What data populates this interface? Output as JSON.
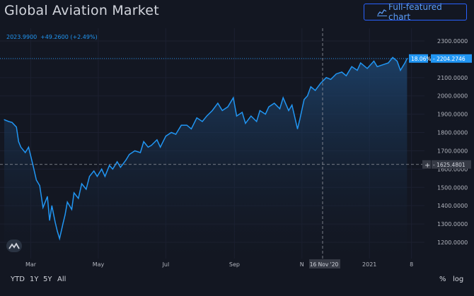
{
  "header": {
    "title": "Global Aviation Market",
    "full_chart_label": "Full-featured chart"
  },
  "legend": {
    "value": "2023.9900",
    "change": "+49.2600 (+2.49%)"
  },
  "crosshair": {
    "x_label": "16 Nov '20",
    "y_value_label": "1625.4801",
    "plus": "+"
  },
  "last_price": {
    "percent_label": "18.06%",
    "value_label": "2204.2746",
    "value": 2204.2746
  },
  "toolbar": {
    "ytd": "YTD",
    "y1": "1Y",
    "y5": "5Y",
    "all": "All",
    "percent": "%",
    "log": "log"
  },
  "colors": {
    "line": "#2196f3",
    "background": "#131722",
    "text": "#d1d4dc",
    "axis_text": "#b2b5be"
  },
  "chart_data": {
    "type": "area",
    "title": "Global Aviation Market",
    "ylim": [
      1100,
      2350
    ],
    "y_ticks": [
      "2300.0000",
      "2200.0000",
      "2100.0000",
      "2000.0000",
      "1900.0000",
      "1800.0000",
      "1700.0000",
      "1600.0000",
      "1500.0000",
      "1400.0000",
      "1300.0000",
      "1200.0000"
    ],
    "y_tick_values": [
      2300,
      2200,
      2100,
      2000,
      1900,
      1800,
      1700,
      1600,
      1500,
      1400,
      1300,
      1200
    ],
    "x_tick_labels": [
      "Mar",
      "May",
      "Jul",
      "Sep",
      "N",
      "2021",
      "8"
    ],
    "x_tick_dates": [
      "2020-03-01",
      "2020-05-01",
      "2020-07-01",
      "2020-09-01",
      "2020-11-01",
      "2021-01-01",
      "2021-02-08"
    ],
    "x_range": [
      "2020-02-06",
      "2021-02-21"
    ],
    "series": [
      {
        "x": [
          "2020-02-06",
          "2020-02-10",
          "2020-02-13",
          "2020-02-17",
          "2020-02-19",
          "2020-02-21",
          "2020-02-25",
          "2020-02-28",
          "2020-03-03",
          "2020-03-06",
          "2020-03-09",
          "2020-03-12",
          "2020-03-16",
          "2020-03-18",
          "2020-03-20",
          "2020-03-23",
          "2020-03-25",
          "2020-03-27",
          "2020-03-30",
          "2020-04-01",
          "2020-04-03",
          "2020-04-07",
          "2020-04-09",
          "2020-04-13",
          "2020-04-16",
          "2020-04-20",
          "2020-04-23",
          "2020-04-27",
          "2020-04-30",
          "2020-05-04",
          "2020-05-07",
          "2020-05-11",
          "2020-05-14",
          "2020-05-18",
          "2020-05-21",
          "2020-05-26",
          "2020-05-29",
          "2020-06-03",
          "2020-06-08",
          "2020-06-11",
          "2020-06-15",
          "2020-06-18",
          "2020-06-23",
          "2020-06-26",
          "2020-07-01",
          "2020-07-06",
          "2020-07-10",
          "2020-07-15",
          "2020-07-20",
          "2020-07-24",
          "2020-07-29",
          "2020-08-03",
          "2020-08-07",
          "2020-08-12",
          "2020-08-17",
          "2020-08-21",
          "2020-08-26",
          "2020-08-31",
          "2020-09-03",
          "2020-09-08",
          "2020-09-11",
          "2020-09-16",
          "2020-09-21",
          "2020-09-24",
          "2020-09-29",
          "2020-10-02",
          "2020-10-07",
          "2020-10-12",
          "2020-10-15",
          "2020-10-20",
          "2020-10-23",
          "2020-10-28",
          "2020-10-30",
          "2020-11-03",
          "2020-11-06",
          "2020-11-09",
          "2020-11-13",
          "2020-11-18",
          "2020-11-23",
          "2020-11-27",
          "2020-12-02",
          "2020-12-07",
          "2020-12-11",
          "2020-12-16",
          "2020-12-21",
          "2020-12-24",
          "2020-12-30",
          "2021-01-05",
          "2021-01-08",
          "2021-01-13",
          "2021-01-18",
          "2021-01-22",
          "2021-01-26",
          "2021-01-29",
          "2021-02-02",
          "2021-02-04"
        ],
        "values": [
          1870,
          1860,
          1855,
          1830,
          1750,
          1720,
          1690,
          1720,
          1620,
          1540,
          1510,
          1390,
          1450,
          1320,
          1400,
          1310,
          1260,
          1220,
          1300,
          1350,
          1420,
          1380,
          1470,
          1440,
          1520,
          1490,
          1560,
          1590,
          1560,
          1600,
          1560,
          1620,
          1600,
          1640,
          1610,
          1650,
          1680,
          1700,
          1690,
          1750,
          1720,
          1730,
          1760,
          1720,
          1780,
          1800,
          1790,
          1840,
          1840,
          1820,
          1880,
          1860,
          1890,
          1920,
          1960,
          1920,
          1940,
          1990,
          1890,
          1910,
          1850,
          1890,
          1860,
          1920,
          1900,
          1940,
          1960,
          1930,
          1990,
          1920,
          1950,
          1820,
          1870,
          1980,
          2000,
          2050,
          2030,
          2070,
          2100,
          2090,
          2120,
          2130,
          2110,
          2160,
          2140,
          2180,
          2150,
          2190,
          2160,
          2170,
          2180,
          2210,
          2190,
          2140,
          2180,
          2204
        ]
      }
    ]
  }
}
